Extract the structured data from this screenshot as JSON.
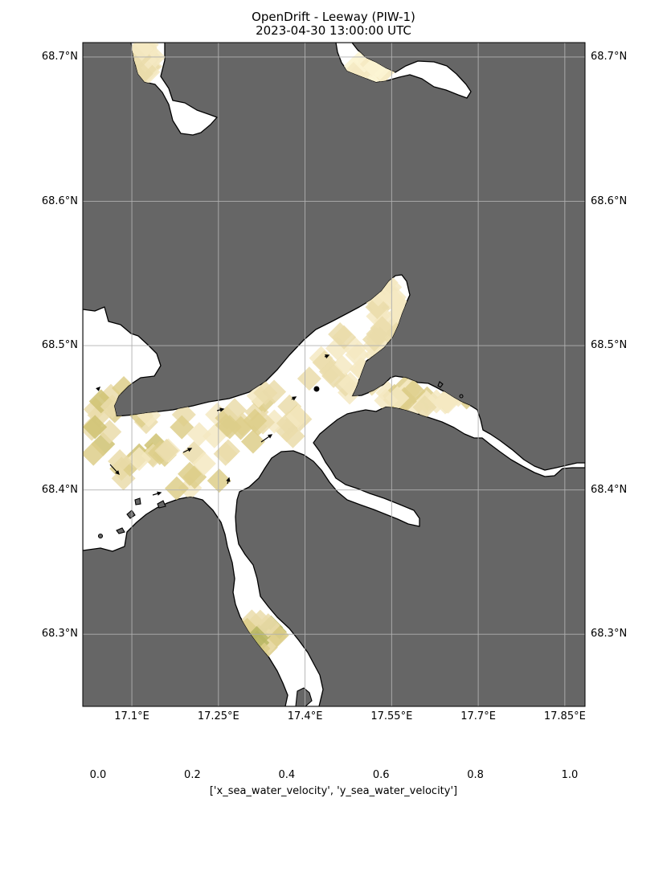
{
  "title": {
    "line1": "OpenDrift - Leeway (PIW-1)",
    "line2": "2023-04-30 13:00:00 UTC"
  },
  "map": {
    "extent": {
      "lon_min": 17.015,
      "lon_max": 17.885,
      "lat_min": 68.25,
      "lat_max": 68.71
    },
    "ocean_background_color": "#666666",
    "land_color": "#666666",
    "water_color": "#ffffff",
    "coastline_color": "#000000",
    "gridline_color": "#b0b0b0",
    "lat_ticks": [
      {
        "value": 68.7,
        "label": "68.7°N"
      },
      {
        "value": 68.6,
        "label": "68.6°N"
      },
      {
        "value": 68.5,
        "label": "68.5°N"
      },
      {
        "value": 68.4,
        "label": "68.4°N"
      },
      {
        "value": 68.3,
        "label": "68.3°N"
      }
    ],
    "lon_ticks": [
      {
        "value": 17.1,
        "label": "17.1°E"
      },
      {
        "value": 17.25,
        "label": "17.25°E"
      },
      {
        "value": 17.4,
        "label": "17.4°E"
      },
      {
        "value": 17.55,
        "label": "17.55°E"
      },
      {
        "value": 17.7,
        "label": "17.7°E"
      },
      {
        "value": 17.85,
        "label": "17.85°E"
      }
    ],
    "particle": {
      "lon": 17.42,
      "lat": 68.47,
      "color": "#000000"
    }
  },
  "colorbar": {
    "label": "['x_sea_water_velocity', 'y_sea_water_velocity']",
    "range": [
      0.0,
      1.0
    ],
    "colormap_stops": [
      "#fbf5d3",
      "#f4e9c2",
      "#eadcaa",
      "#ddce8a",
      "#cfc272",
      "#b7b663",
      "#9bae53",
      "#7ea95b",
      "#5f9a61",
      "#4f8c66",
      "#56786a",
      "#5a6a63",
      "#525b55"
    ],
    "ticks": [
      {
        "value": 0.0,
        "label": "0.0"
      },
      {
        "value": 0.2,
        "label": "0.2"
      },
      {
        "value": 0.4,
        "label": "0.4"
      },
      {
        "value": 0.6,
        "label": "0.6"
      },
      {
        "value": 0.8,
        "label": "0.8"
      },
      {
        "value": 1.0,
        "label": "1.0"
      }
    ]
  }
}
